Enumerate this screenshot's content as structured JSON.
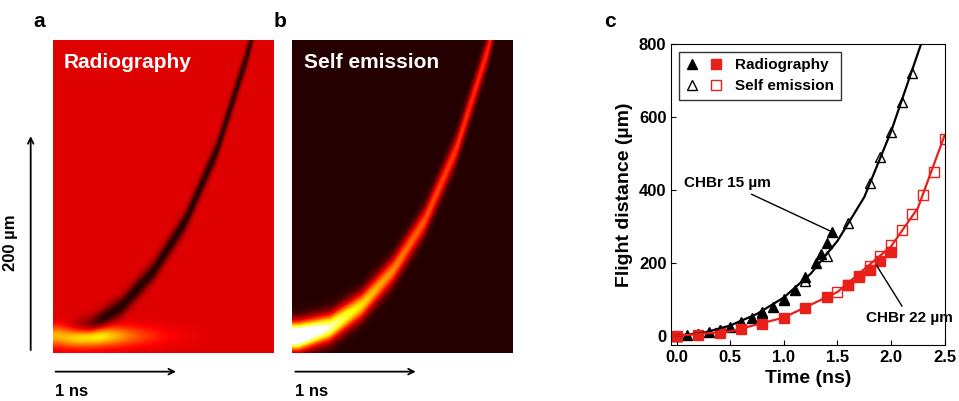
{
  "chart_data": [
    {
      "type": "image",
      "panel": "a",
      "title": "Radiography",
      "xlim": [
        -0.05,
        1.7
      ],
      "ylim": [
        -15,
        270
      ],
      "tick_labels": false,
      "scale_bars": [
        {
          "value": 200,
          "label": "200 µm"
        },
        {
          "value": 1,
          "label": "1 ns"
        }
      ]
    },
    {
      "type": "image",
      "panel": "b",
      "title": "Self emission",
      "xlim": [
        -0.05,
        1.7
      ],
      "ylim": [
        -15,
        270
      ],
      "tick_labels": false,
      "scale_bars": [
        {
          "value": 1,
          "label": "1 ns"
        }
      ]
    },
    {
      "type": "scatter",
      "panel": "c",
      "xlabel": "Time (ns)",
      "ylabel": "Flight distance (µm)",
      "xlim": [
        -0.05,
        2.5
      ],
      "ylim": [
        -25,
        800
      ],
      "xticks": [
        0.0,
        0.5,
        1.0,
        1.5,
        2.0,
        2.5
      ],
      "yticks": [
        0,
        200,
        400,
        600,
        800
      ],
      "legend": "upper left",
      "series": [
        {
          "name": "Radiography",
          "color": "#000000",
          "marker": "filled_triangle",
          "x": [
            0.0,
            0.1,
            0.2,
            0.3,
            0.4,
            0.5,
            0.6,
            0.7,
            0.8,
            0.9,
            1.0,
            1.1,
            1.2,
            1.3,
            1.35,
            1.4,
            1.45
          ],
          "values": [
            0,
            2,
            5,
            10,
            15,
            25,
            35,
            48,
            62,
            78,
            98,
            125,
            160,
            200,
            225,
            255,
            285
          ]
        },
        {
          "name": "Self emission",
          "color": "#000000",
          "marker": "open_triangle",
          "x": [
            0.0,
            0.2,
            0.4,
            0.6,
            0.8,
            1.0,
            1.2,
            1.4,
            1.6,
            1.8,
            1.9,
            2.0,
            2.1,
            2.2
          ],
          "values": [
            0,
            5,
            17,
            38,
            65,
            100,
            150,
            220,
            310,
            420,
            490,
            560,
            640,
            720
          ]
        },
        {
          "name": "Radiography",
          "color": "#e8201a",
          "marker": "filled_square",
          "x": [
            0.0,
            0.2,
            0.4,
            0.6,
            0.8,
            1.0,
            1.2,
            1.4,
            1.6,
            1.7,
            1.8,
            1.9,
            2.0
          ],
          "values": [
            0,
            2,
            8,
            18,
            32,
            50,
            75,
            105,
            140,
            160,
            180,
            205,
            230
          ]
        },
        {
          "name": "Self emission",
          "color": "#e8201a",
          "marker": "open_square",
          "x": [
            1.5,
            1.6,
            1.7,
            1.8,
            1.9,
            2.0,
            2.1,
            2.2,
            2.3,
            2.4,
            2.5
          ],
          "values": [
            120,
            140,
            165,
            190,
            220,
            250,
            290,
            335,
            385,
            450,
            540
          ]
        },
        {
          "type": "line",
          "color": "#000000",
          "x": [
            0.0,
            0.25,
            0.5,
            0.75,
            1.0,
            1.25,
            1.5,
            1.75,
            2.0,
            2.28
          ],
          "values": [
            0,
            8,
            28,
            60,
            105,
            170,
            260,
            380,
            560,
            800
          ]
        },
        {
          "type": "line",
          "color": "#e8201a",
          "x": [
            0.0,
            0.5,
            1.0,
            1.5,
            2.0,
            2.25,
            2.5
          ],
          "values": [
            0,
            12,
            50,
            120,
            245,
            350,
            550
          ]
        }
      ],
      "annotations": [
        {
          "text": "CHBr 15 µm",
          "x": 1.45,
          "y": 285
        },
        {
          "text": "CHBr 22 µm",
          "x": 1.85,
          "y": 200
        }
      ]
    }
  ]
}
